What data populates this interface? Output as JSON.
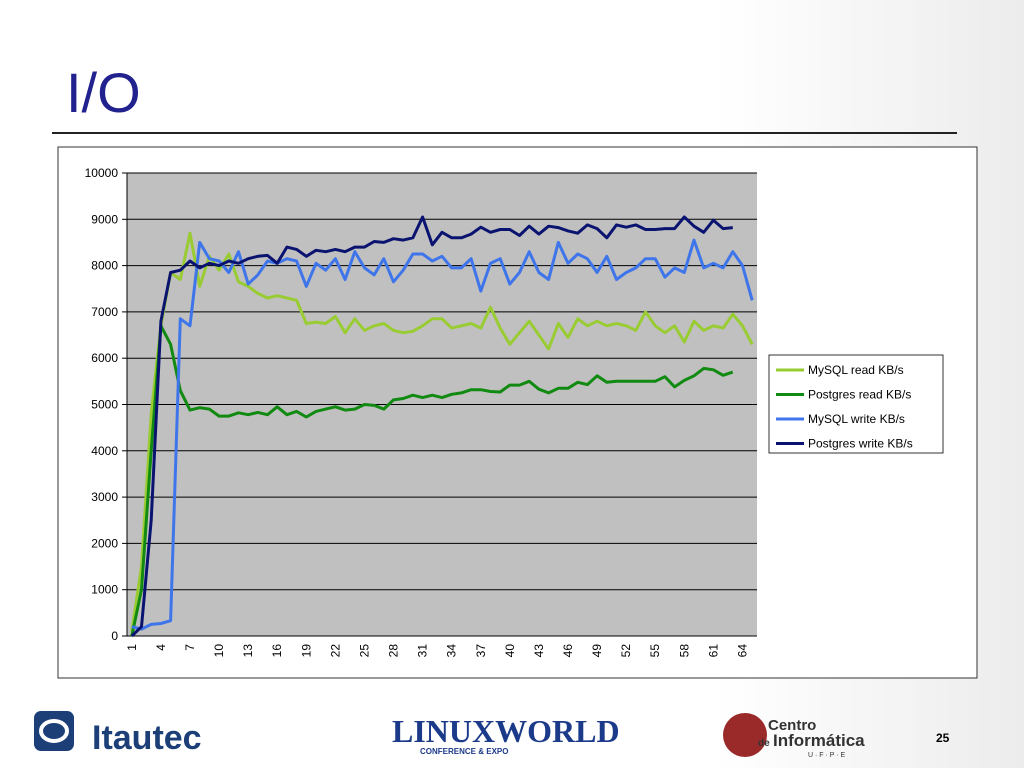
{
  "slide": {
    "title": "I/O",
    "page": 25,
    "logos": [
      "Itautec",
      "LINUXWORLD",
      "CONFERENCE & EXPO",
      "Centro",
      "de",
      "Informática",
      "U · F · P · E"
    ]
  },
  "chart_data": {
    "type": "line",
    "categories": [
      1,
      null,
      null,
      4,
      null,
      null,
      7,
      null,
      null,
      10,
      null,
      null,
      13,
      null,
      null,
      16,
      null,
      null,
      19,
      null,
      null,
      22,
      null,
      null,
      25,
      null,
      null,
      28,
      null,
      null,
      31,
      null,
      null,
      34,
      null,
      null,
      37,
      null,
      null,
      40,
      null,
      null,
      43,
      null,
      null,
      46,
      null,
      null,
      49,
      null,
      null,
      52,
      null,
      null,
      55,
      null,
      null,
      58,
      null,
      null,
      61,
      null,
      null,
      64,
      null
    ],
    "ylim": [
      0,
      10000
    ],
    "yticks": [
      0,
      1000,
      2000,
      3000,
      4000,
      5000,
      6000,
      7000,
      8000,
      9000,
      10000
    ],
    "grid": true,
    "legend": "right",
    "series": [
      {
        "name": "MySQL read KB/s",
        "color": "#99cc33",
        "values": [
          100,
          1500,
          4800,
          6700,
          7850,
          7700,
          8700,
          7550,
          8200,
          7900,
          8250,
          7650,
          7550,
          7400,
          7300,
          7350,
          7300,
          7250,
          6750,
          6780,
          6750,
          6900,
          6550,
          6850,
          6600,
          6700,
          6750,
          6600,
          6550,
          6580,
          6700,
          6850,
          6850,
          6650,
          6700,
          6750,
          6650,
          7100,
          6650,
          6300,
          6550,
          6800,
          6500,
          6200,
          6750,
          6450,
          6850,
          6700,
          6800,
          6700,
          6750,
          6700,
          6600,
          7000,
          6700,
          6550,
          6700,
          6350,
          6800,
          6600,
          6700,
          6650,
          6950,
          6700,
          6300
        ]
      },
      {
        "name": "Postgres read KB/s",
        "color": "#118a11",
        "values": [
          0,
          1000,
          4000,
          6700,
          6300,
          5300,
          4880,
          4930,
          4900,
          4750,
          4750,
          4820,
          4780,
          4830,
          4780,
          4950,
          4780,
          4850,
          4730,
          4850,
          4900,
          4950,
          4880,
          4900,
          5000,
          4980,
          4900,
          5100,
          5130,
          5200,
          5150,
          5200,
          5150,
          5220,
          5250,
          5320,
          5320,
          5280,
          5270,
          5420,
          5420,
          5500,
          5330,
          5250,
          5350,
          5350,
          5480,
          5430,
          5620,
          5480,
          5500,
          5500,
          5500,
          5500,
          5500,
          5600,
          5380,
          5520,
          5620,
          5780,
          5750,
          5630,
          5700,
          null,
          null
        ]
      },
      {
        "name": "MySQL write KB/s",
        "color": "#3f75ea",
        "values": [
          200,
          150,
          250,
          270,
          330,
          6850,
          6700,
          8500,
          8150,
          8100,
          7850,
          8300,
          7600,
          7800,
          8100,
          8050,
          8150,
          8100,
          7550,
          8050,
          7900,
          8150,
          7700,
          8300,
          7950,
          7800,
          8150,
          7650,
          7900,
          8250,
          8250,
          8100,
          8200,
          7950,
          7950,
          8150,
          7450,
          8050,
          8150,
          7600,
          7850,
          8300,
          7850,
          7700,
          8500,
          8050,
          8250,
          8150,
          7850,
          8200,
          7700,
          7850,
          7950,
          8150,
          8150,
          7750,
          7950,
          7850,
          8550,
          7950,
          8050,
          7950,
          8300,
          8000,
          7250
        ]
      },
      {
        "name": "Postgres write KB/s",
        "color": "#0a1470",
        "values": [
          0,
          200,
          2500,
          6800,
          7850,
          7900,
          8100,
          7950,
          8050,
          8000,
          8100,
          8050,
          8150,
          8200,
          8220,
          8050,
          8400,
          8350,
          8200,
          8330,
          8300,
          8350,
          8300,
          8400,
          8400,
          8520,
          8500,
          8580,
          8550,
          8600,
          9050,
          8450,
          8720,
          8600,
          8600,
          8680,
          8830,
          8720,
          8780,
          8780,
          8650,
          8850,
          8680,
          8850,
          8820,
          8750,
          8700,
          8880,
          8800,
          8600,
          8880,
          8830,
          8880,
          8780,
          8780,
          8800,
          8800,
          9050,
          8850,
          8720,
          8980,
          8800,
          8820,
          null,
          null
        ]
      }
    ]
  }
}
